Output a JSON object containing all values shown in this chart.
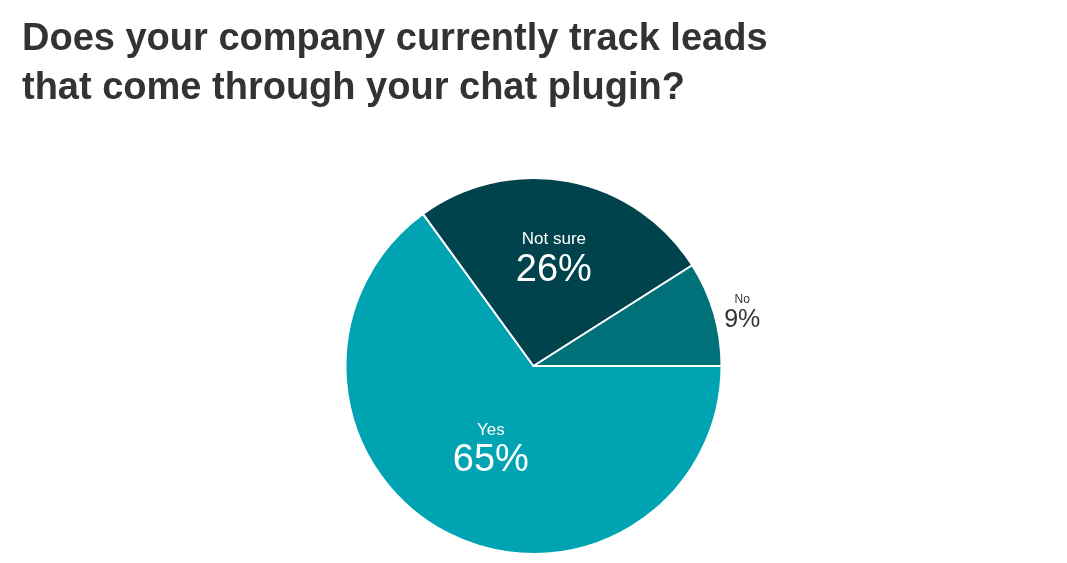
{
  "chart_data": {
    "type": "pie",
    "title": "Does your company currently track leads that come through your chat plugin?",
    "categories": [
      "Yes",
      "Not sure",
      "No"
    ],
    "values": [
      65,
      26,
      9
    ],
    "value_labels": [
      "65%",
      "26%",
      "9%"
    ],
    "colors": [
      "#00a3b1",
      "#00434c",
      "#007179"
    ]
  }
}
